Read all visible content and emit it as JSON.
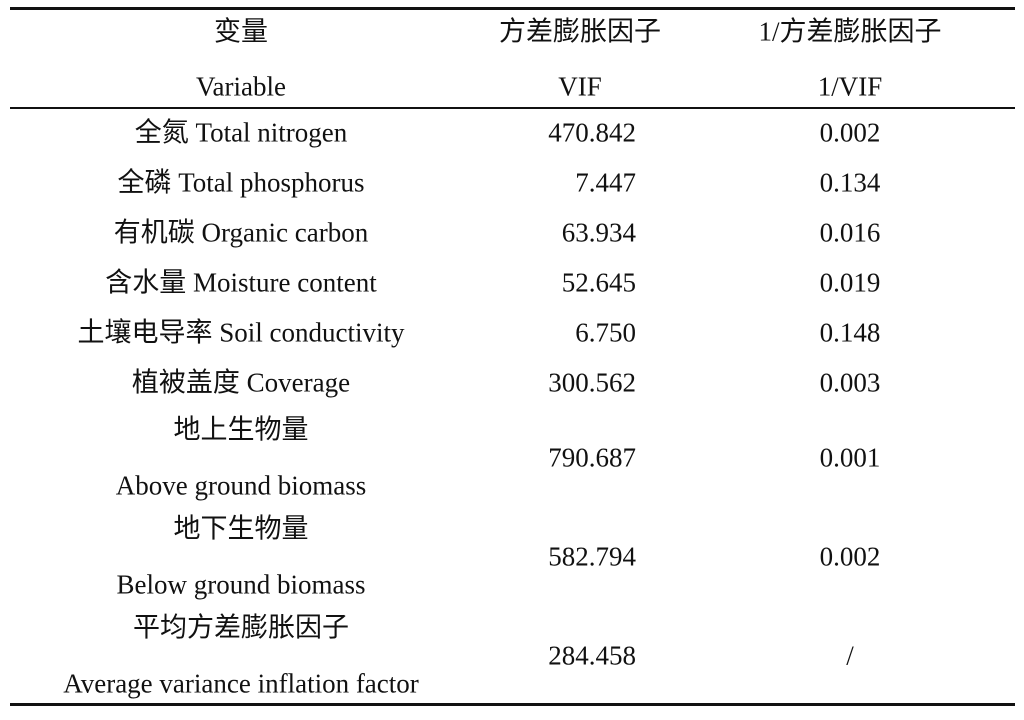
{
  "table": {
    "header": {
      "variable": [
        "变量",
        "Variable"
      ],
      "vif": [
        "方差膨胀因子",
        "VIF"
      ],
      "inverse_vif": [
        "1/方差膨胀因子",
        "1/VIF"
      ]
    },
    "rows": [
      {
        "variable": [
          "全氮 Total nitrogen"
        ],
        "vif": "470.842",
        "inverse_vif": "0.002"
      },
      {
        "variable": [
          "全磷 Total phosphorus"
        ],
        "vif": "7.447",
        "inverse_vif": "0.134"
      },
      {
        "variable": [
          "有机碳 Organic carbon"
        ],
        "vif": "63.934",
        "inverse_vif": "0.016"
      },
      {
        "variable": [
          "含水量 Moisture content"
        ],
        "vif": "52.645",
        "inverse_vif": "0.019"
      },
      {
        "variable": [
          "土壤电导率 Soil conductivity"
        ],
        "vif": "6.750",
        "inverse_vif": "0.148"
      },
      {
        "variable": [
          "植被盖度 Coverage"
        ],
        "vif": "300.562",
        "inverse_vif": "0.003"
      },
      {
        "variable": [
          "地上生物量",
          "Above ground biomass"
        ],
        "vif": "790.687",
        "inverse_vif": "0.001"
      },
      {
        "variable": [
          "地下生物量",
          "Below ground biomass"
        ],
        "vif": "582.794",
        "inverse_vif": "0.002"
      },
      {
        "variable": [
          "平均方差膨胀因子",
          "Average variance inflation factor"
        ],
        "vif": "284.458",
        "inverse_vif": "/"
      }
    ]
  }
}
